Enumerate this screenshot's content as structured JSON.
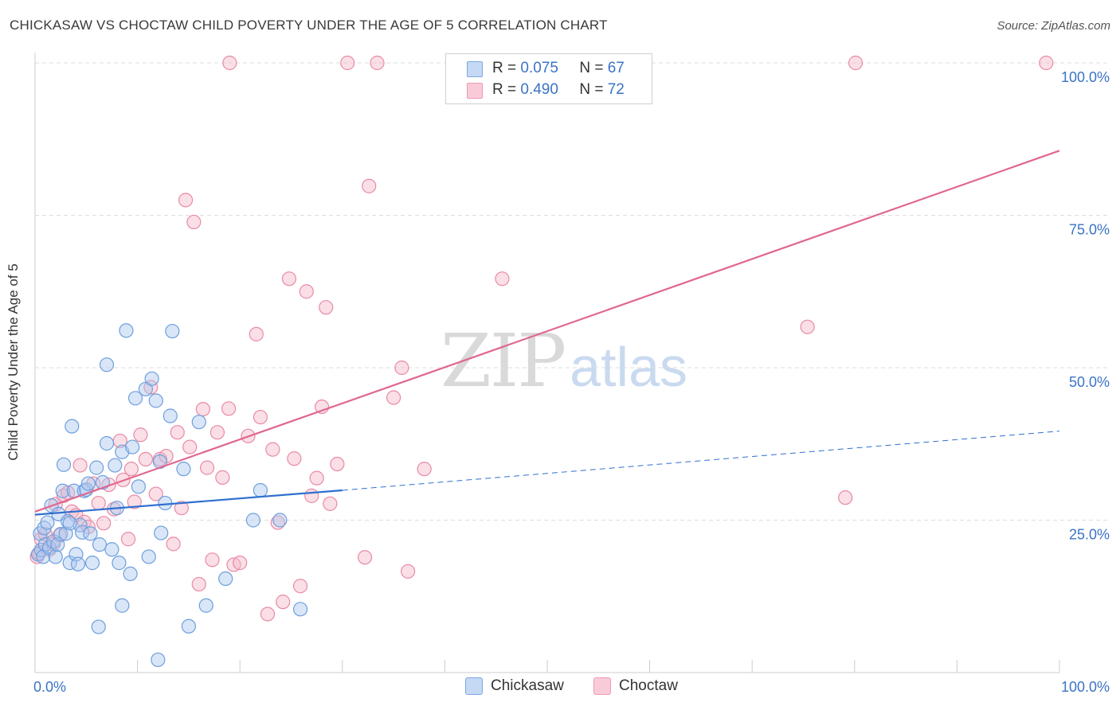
{
  "title": "CHICKASAW VS CHOCTAW CHILD POVERTY UNDER THE AGE OF 5 CORRELATION CHART",
  "source": "Source: ZipAtlas.com",
  "watermark": {
    "zip": "ZIP",
    "atlas": "atlas"
  },
  "colors": {
    "chickasaw_fill": "#aac8f0",
    "chickasaw_edge": "#6e9fdc",
    "chickasaw_line": "#2f6fcf",
    "choctaw_fill": "#f5b7c8",
    "choctaw_edge": "#e98aa5",
    "choctaw_line": "#e0678f",
    "tick_label": "#3b73c6",
    "grid": "#dddddd"
  },
  "stats": [
    {
      "r_label": "R =",
      "r": "0.075",
      "n_label": "N =",
      "n": "67"
    },
    {
      "r_label": "R =",
      "r": "0.490",
      "n_label": "N =",
      "n": "72"
    }
  ],
  "chart_data": {
    "type": "scatter",
    "title": "CHICKASAW VS CHOCTAW CHILD POVERTY UNDER THE AGE OF 5 CORRELATION CHART",
    "xlabel": "",
    "ylabel": "Child Poverty Under the Age of 5",
    "xlim": [
      0,
      100
    ],
    "ylim": [
      0,
      100
    ],
    "x_ticks": [
      "0.0%",
      "100.0%"
    ],
    "y_ticks": [
      {
        "value": 25,
        "label": "25.0%"
      },
      {
        "value": 50,
        "label": "50.0%"
      },
      {
        "value": 75,
        "label": "75.0%"
      },
      {
        "value": 100,
        "label": "100.0%"
      }
    ],
    "grid": true,
    "legend_position": "bottom-center",
    "series": [
      {
        "name": "Chickasaw",
        "points": [
          [
            0.3,
            19.4
          ],
          [
            0.5,
            22.8
          ],
          [
            0.6,
            20.1
          ],
          [
            0.8,
            19.0
          ],
          [
            0.9,
            23.7
          ],
          [
            1.0,
            21.0
          ],
          [
            1.2,
            24.6
          ],
          [
            1.4,
            20.5
          ],
          [
            1.6,
            27.4
          ],
          [
            1.8,
            21.5
          ],
          [
            2.0,
            19.0
          ],
          [
            2.2,
            21.0
          ],
          [
            2.3,
            26.0
          ],
          [
            2.5,
            22.7
          ],
          [
            2.7,
            29.8
          ],
          [
            2.8,
            34.1
          ],
          [
            3.0,
            22.8
          ],
          [
            3.2,
            24.8
          ],
          [
            3.4,
            18.0
          ],
          [
            3.6,
            40.4
          ],
          [
            3.8,
            29.8
          ],
          [
            4.0,
            19.4
          ],
          [
            4.2,
            17.8
          ],
          [
            4.4,
            24.2
          ],
          [
            4.6,
            23.0
          ],
          [
            4.8,
            29.8
          ],
          [
            5.0,
            30.0
          ],
          [
            5.2,
            31.0
          ],
          [
            5.4,
            22.8
          ],
          [
            5.6,
            18.0
          ],
          [
            6.0,
            33.6
          ],
          [
            6.3,
            21.0
          ],
          [
            6.6,
            31.2
          ],
          [
            7.0,
            37.6
          ],
          [
            7.0,
            50.5
          ],
          [
            7.5,
            20.2
          ],
          [
            7.8,
            34.0
          ],
          [
            8.0,
            27.0
          ],
          [
            8.2,
            18.0
          ],
          [
            8.5,
            11.0
          ],
          [
            8.5,
            36.2
          ],
          [
            8.9,
            56.1
          ],
          [
            9.3,
            16.2
          ],
          [
            9.5,
            37.0
          ],
          [
            9.8,
            45.0
          ],
          [
            10.1,
            30.5
          ],
          [
            10.8,
            46.5
          ],
          [
            11.1,
            19.0
          ],
          [
            11.4,
            48.2
          ],
          [
            11.8,
            44.6
          ],
          [
            12.0,
            2.1
          ],
          [
            12.2,
            34.6
          ],
          [
            12.3,
            22.9
          ],
          [
            12.7,
            27.8
          ],
          [
            13.2,
            42.1
          ],
          [
            13.4,
            56.0
          ],
          [
            14.5,
            33.4
          ],
          [
            15.0,
            7.6
          ],
          [
            16.0,
            41.1
          ],
          [
            16.7,
            11.0
          ],
          [
            18.6,
            15.4
          ],
          [
            21.3,
            25.0
          ],
          [
            22.0,
            29.9
          ],
          [
            23.9,
            25.0
          ],
          [
            25.9,
            10.4
          ],
          [
            6.2,
            7.5
          ],
          [
            3.4,
            24.5
          ]
        ]
      },
      {
        "name": "Choctaw",
        "points": [
          [
            0.2,
            19.0
          ],
          [
            0.4,
            19.6
          ],
          [
            0.6,
            21.9
          ],
          [
            1.0,
            22.7
          ],
          [
            1.4,
            20.2
          ],
          [
            1.8,
            21.1
          ],
          [
            2.0,
            27.6
          ],
          [
            2.4,
            22.5
          ],
          [
            2.8,
            29.0
          ],
          [
            3.2,
            29.5
          ],
          [
            3.6,
            26.4
          ],
          [
            4.0,
            25.8
          ],
          [
            4.4,
            34.0
          ],
          [
            4.8,
            24.7
          ],
          [
            5.2,
            23.9
          ],
          [
            5.7,
            31.0
          ],
          [
            6.2,
            27.8
          ],
          [
            6.7,
            24.5
          ],
          [
            7.2,
            30.8
          ],
          [
            7.7,
            26.8
          ],
          [
            8.3,
            38.0
          ],
          [
            8.6,
            31.6
          ],
          [
            9.1,
            21.9
          ],
          [
            9.4,
            33.4
          ],
          [
            9.7,
            28.0
          ],
          [
            10.3,
            39.0
          ],
          [
            10.8,
            35.0
          ],
          [
            11.3,
            46.8
          ],
          [
            11.8,
            29.3
          ],
          [
            12.2,
            35.0
          ],
          [
            12.8,
            35.5
          ],
          [
            13.5,
            21.1
          ],
          [
            13.9,
            39.4
          ],
          [
            14.3,
            27.0
          ],
          [
            14.7,
            77.5
          ],
          [
            15.1,
            37.0
          ],
          [
            15.5,
            73.9
          ],
          [
            16.0,
            14.5
          ],
          [
            16.4,
            43.2
          ],
          [
            16.8,
            33.6
          ],
          [
            17.3,
            18.5
          ],
          [
            17.8,
            39.4
          ],
          [
            18.3,
            32.0
          ],
          [
            18.9,
            43.3
          ],
          [
            19.4,
            17.7
          ],
          [
            20.0,
            18.0
          ],
          [
            20.8,
            38.8
          ],
          [
            21.6,
            55.5
          ],
          [
            22.0,
            41.9
          ],
          [
            22.7,
            9.6
          ],
          [
            23.2,
            36.6
          ],
          [
            23.7,
            24.6
          ],
          [
            24.2,
            11.6
          ],
          [
            24.8,
            64.6
          ],
          [
            25.3,
            35.1
          ],
          [
            25.9,
            14.2
          ],
          [
            26.5,
            62.5
          ],
          [
            27.0,
            29.0
          ],
          [
            27.5,
            31.9
          ],
          [
            28.0,
            43.6
          ],
          [
            28.4,
            59.9
          ],
          [
            28.8,
            27.7
          ],
          [
            29.5,
            34.2
          ],
          [
            32.2,
            18.9
          ],
          [
            32.6,
            79.8
          ],
          [
            35.0,
            45.1
          ],
          [
            35.8,
            50.0
          ],
          [
            36.4,
            16.6
          ],
          [
            38.0,
            33.4
          ],
          [
            45.6,
            64.6
          ],
          [
            75.4,
            56.7
          ],
          [
            79.1,
            28.7
          ]
        ]
      },
      {
        "name": "Choctaw-top",
        "points": [
          [
            19.0,
            100
          ],
          [
            30.5,
            100
          ],
          [
            33.4,
            100
          ],
          [
            80.1,
            100
          ],
          [
            98.7,
            100
          ]
        ]
      }
    ],
    "trendlines": [
      {
        "series": "Chickasaw",
        "x": [
          0,
          30
        ],
        "y": [
          25.9,
          29.9
        ],
        "style": "solid"
      },
      {
        "series": "Chickasaw",
        "x": [
          30,
          100
        ],
        "y": [
          29.9,
          39.6
        ],
        "style": "dashed"
      },
      {
        "series": "Choctaw",
        "x": [
          0,
          100
        ],
        "y": [
          26.4,
          85.6
        ],
        "style": "solid"
      }
    ]
  },
  "legend": [
    {
      "label": "Chickasaw"
    },
    {
      "label": "Choctaw"
    }
  ]
}
